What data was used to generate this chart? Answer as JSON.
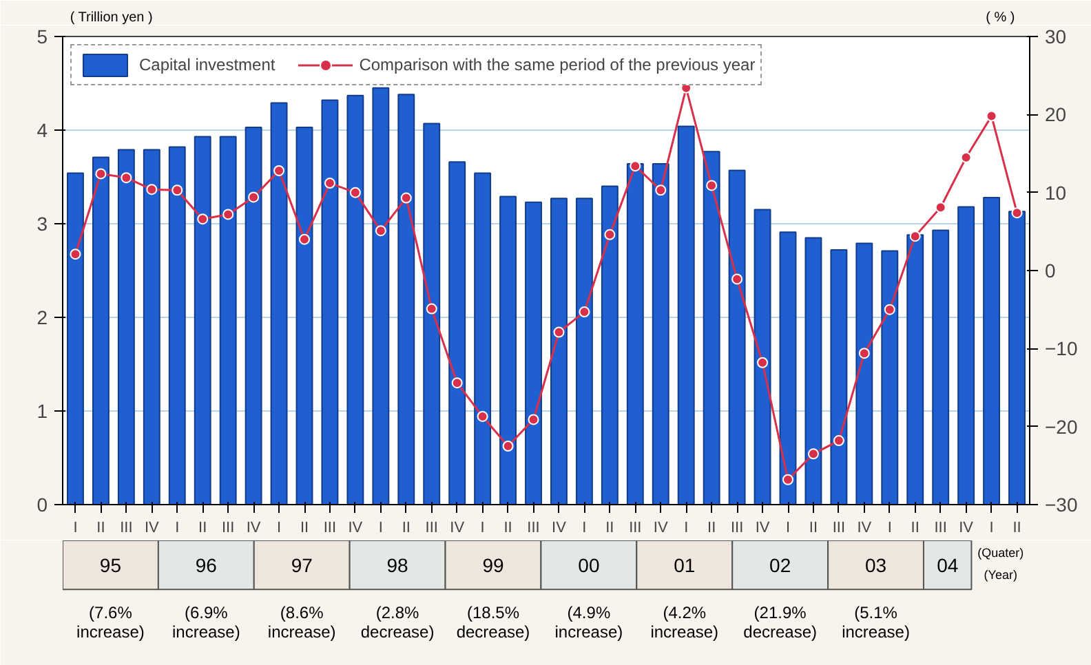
{
  "chart_data": {
    "type": "bar",
    "ylabel": "( Trillion yen )",
    "y2label": "( % )",
    "categories": [
      "I",
      "II",
      "III",
      "IV",
      "I",
      "II",
      "III",
      "IV",
      "I",
      "II",
      "III",
      "IV",
      "I",
      "II",
      "III",
      "IV",
      "I",
      "II",
      "III",
      "IV",
      "I",
      "II",
      "III",
      "IV",
      "I",
      "II",
      "III",
      "IV",
      "I",
      "II",
      "III",
      "IV",
      "I",
      "II",
      "III",
      "IV",
      "I",
      "II"
    ],
    "series": [
      {
        "name": "Capital investment",
        "color": "#1f5fd0",
        "values": [
          3.54,
          3.71,
          3.79,
          3.79,
          3.82,
          3.93,
          3.93,
          4.03,
          4.29,
          4.03,
          4.32,
          4.37,
          4.45,
          4.38,
          4.07,
          3.66,
          3.54,
          3.29,
          3.23,
          3.27,
          3.27,
          3.4,
          3.64,
          3.64,
          4.04,
          3.77,
          3.57,
          3.15,
          2.91,
          2.85,
          2.72,
          2.79,
          2.71,
          2.88,
          2.93,
          3.18,
          3.28,
          3.13
        ]
      },
      {
        "name": "Comparison with the same period of the previous year",
        "type": "line",
        "axis": "y2",
        "color": "#d8304a",
        "marker": "circle",
        "line_style": "solid",
        "values": [
          2.1,
          12.4,
          11.9,
          10.4,
          10.3,
          6.6,
          7.2,
          9.4,
          12.8,
          4.0,
          11.2,
          10.0,
          5.1,
          9.3,
          -4.9,
          -14.4,
          -18.7,
          -22.5,
          -19.1,
          -7.9,
          -5.3,
          4.6,
          13.4,
          10.3,
          23.4,
          10.9,
          -1.1,
          -11.8,
          -26.8,
          -23.5,
          -21.8,
          -10.6,
          -5.0,
          4.4,
          8.1,
          14.5,
          19.8,
          7.4
        ]
      }
    ],
    "ylim": [
      0,
      5
    ],
    "yticks": [
      0,
      1,
      2,
      3,
      4,
      5
    ],
    "y2lim": [
      -30,
      30
    ],
    "y2ticks": [
      -30,
      -20,
      -10,
      0,
      10,
      20,
      30
    ],
    "grid": "y",
    "legend": "top left",
    "annotations": [
      "95",
      "96",
      "97",
      "98",
      "99",
      "00",
      "01",
      "02",
      "03",
      "04",
      "(7.6% increase)",
      "(6.9% increase)",
      "(8.6% increase)",
      "(2.8% decrease)",
      "(18.5% decrease)",
      "(4.9% increase)",
      "(4.2% increase)",
      "(21.9% decrease)",
      "(5.1% increase)",
      "(Quater)",
      "(Year)"
    ]
  }
}
